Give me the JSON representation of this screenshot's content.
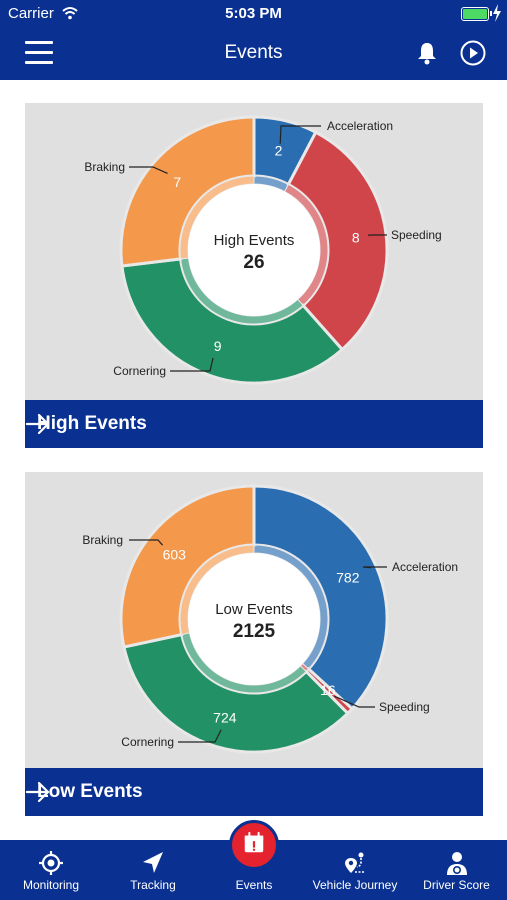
{
  "status_bar": {
    "carrier": "Carrier",
    "time": "5:03 PM"
  },
  "nav": {
    "title": "Events"
  },
  "high_card": {
    "center_title": "High Events",
    "center_value": "26",
    "footer_label": "High Events",
    "colors": {
      "acceleration": "#2a6db0",
      "speeding": "#d0454a",
      "cornering": "#239166",
      "braking": "#f4994c"
    }
  },
  "low_card": {
    "center_title": "Low Events",
    "center_value": "2125",
    "footer_label": "Low Events"
  },
  "tabs": [
    {
      "label": "Monitoring",
      "icon": "crosshair-icon"
    },
    {
      "label": "Tracking",
      "icon": "navigation-arrow-icon"
    },
    {
      "label": "Events",
      "icon": "calendar-alert-icon"
    },
    {
      "label": "Vehicle Journey",
      "icon": "route-pin-icon"
    },
    {
      "label": "Driver Score",
      "icon": "driver-icon"
    }
  ],
  "chart_data": [
    {
      "type": "pie",
      "title": "High Events",
      "total": 26,
      "categories": [
        "Acceleration",
        "Speeding",
        "Cornering",
        "Braking"
      ],
      "values": [
        2,
        8,
        9,
        7
      ],
      "colors": [
        "#2a6db0",
        "#d0454a",
        "#239166",
        "#f4994c"
      ]
    },
    {
      "type": "pie",
      "title": "Low Events",
      "total": 2125,
      "categories": [
        "Acceleration",
        "Speeding",
        "Cornering",
        "Braking"
      ],
      "values": [
        782,
        16,
        724,
        603
      ],
      "colors": [
        "#2a6db0",
        "#d0454a",
        "#239166",
        "#f4994c"
      ]
    }
  ]
}
